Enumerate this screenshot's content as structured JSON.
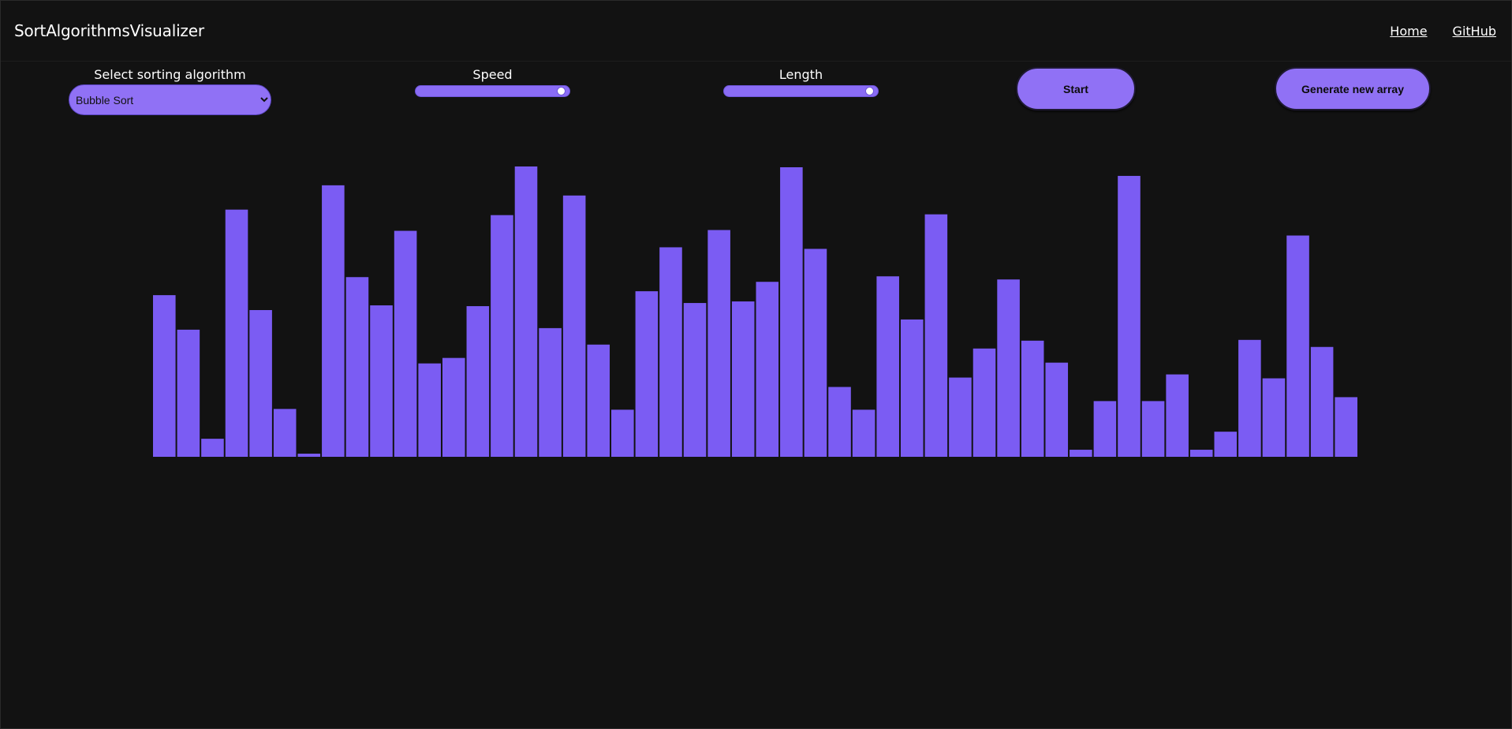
{
  "navbar": {
    "brand": "SortAlgorithmsVisualizer",
    "links": [
      "Home",
      "GitHub"
    ]
  },
  "controls": {
    "algorithm": {
      "label": "Select sorting algorithm",
      "selected": "Bubble Sort"
    },
    "speed": {
      "label": "Speed",
      "value_fraction": 0.98
    },
    "length": {
      "label": "Length",
      "value_fraction": 0.98
    },
    "start_button": "Start",
    "generate_button": "Generate new array"
  },
  "colors": {
    "background": "#121212",
    "accent": "#7b5cf3",
    "button": "#9071f5"
  },
  "chart_data": {
    "type": "bar",
    "values": [
      206,
      162,
      23,
      315,
      187,
      61,
      4,
      346,
      229,
      193,
      288,
      119,
      126,
      192,
      308,
      370,
      164,
      333,
      143,
      60,
      211,
      267,
      196,
      289,
      198,
      223,
      369,
      265,
      89,
      60,
      230,
      175,
      309,
      101,
      138,
      226,
      148,
      120,
      9,
      71,
      358,
      71,
      105,
      9,
      32,
      149,
      100,
      282,
      140,
      76
    ],
    "ylim": [
      0,
      370
    ]
  }
}
